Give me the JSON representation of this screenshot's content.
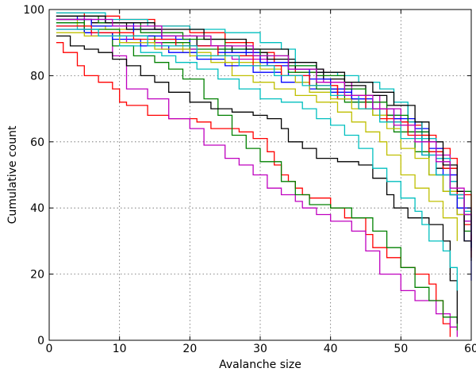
{
  "chart_data": {
    "type": "line",
    "title": "",
    "xlabel": "Avalanche size",
    "ylabel": "Cumulative count",
    "xlim": [
      0,
      60
    ],
    "ylim": [
      0,
      100
    ],
    "xticks": [
      0,
      10,
      20,
      30,
      40,
      50,
      60
    ],
    "yticks": [
      0,
      20,
      40,
      60,
      80,
      100
    ],
    "grid": true,
    "legend": "none",
    "step": true,
    "series": [
      {
        "color": "#ff0000",
        "x": [
          1,
          2,
          4,
          5,
          7,
          9,
          10,
          11,
          14,
          17,
          21,
          23,
          27,
          29,
          31,
          32,
          33,
          34,
          35,
          36,
          37,
          40,
          42,
          45,
          46,
          48,
          50,
          52,
          54,
          55,
          56,
          57
        ],
        "y": [
          90,
          87,
          83,
          80,
          78,
          76,
          72,
          71,
          68,
          67,
          66,
          64,
          63,
          61,
          57,
          53,
          50,
          48,
          46,
          44,
          43,
          40,
          37,
          32,
          28,
          25,
          22,
          20,
          17,
          12,
          5,
          1
        ]
      },
      {
        "color": "#bf00bf",
        "x": [
          1,
          5,
          9,
          11,
          14,
          17,
          20,
          22,
          25,
          27,
          29,
          31,
          33,
          35,
          36,
          38,
          40,
          43,
          45,
          47,
          50,
          52,
          55,
          57,
          58
        ],
        "y": [
          98,
          93,
          86,
          76,
          73,
          67,
          64,
          59,
          55,
          53,
          50,
          46,
          44,
          42,
          40,
          38,
          36,
          33,
          27,
          20,
          15,
          12,
          8,
          4,
          1
        ]
      },
      {
        "color": "#008000",
        "x": [
          1,
          5,
          9,
          12,
          15,
          17,
          19,
          22,
          24,
          26,
          28,
          30,
          33,
          35,
          37,
          40,
          43,
          46,
          48,
          50,
          52,
          54,
          56,
          58
        ],
        "y": [
          97,
          93,
          89,
          86,
          84,
          82,
          79,
          73,
          68,
          62,
          58,
          54,
          48,
          44,
          41,
          40,
          37,
          33,
          28,
          22,
          16,
          12,
          7,
          3
        ]
      },
      {
        "color": "#000000",
        "x": [
          1,
          3,
          5,
          7,
          9,
          11,
          13,
          15,
          17,
          20,
          23,
          26,
          29,
          31,
          33,
          34,
          36,
          38,
          41,
          44,
          46,
          48,
          49,
          51,
          54,
          56,
          57,
          58
        ],
        "y": [
          92,
          89,
          88,
          87,
          85,
          83,
          80,
          78,
          75,
          72,
          70,
          69,
          68,
          67,
          64,
          60,
          58,
          55,
          54,
          53,
          49,
          44,
          40,
          37,
          35,
          30,
          18,
          5
        ]
      },
      {
        "color": "#00bfbf",
        "x": [
          1,
          4,
          7,
          10,
          13,
          16,
          18,
          21,
          24,
          27,
          30,
          33,
          36,
          38,
          40,
          42,
          44,
          46,
          48,
          50,
          52,
          53,
          54,
          56,
          57,
          58
        ],
        "y": [
          96,
          94,
          92,
          89,
          87,
          86,
          84,
          82,
          79,
          76,
          73,
          72,
          70,
          67,
          65,
          62,
          58,
          52,
          48,
          43,
          39,
          35,
          30,
          27,
          22,
          15
        ]
      },
      {
        "color": "#bfbf00",
        "x": [
          1,
          4,
          8,
          12,
          15,
          19,
          23,
          26,
          29,
          32,
          35,
          38,
          41,
          43,
          45,
          47,
          48,
          50,
          52,
          54,
          56,
          58
        ],
        "y": [
          97,
          95,
          94,
          92,
          90,
          87,
          84,
          80,
          78,
          76,
          74,
          72,
          69,
          66,
          63,
          60,
          56,
          50,
          46,
          42,
          37,
          30
        ]
      },
      {
        "color": "#0000ff",
        "x": [
          1,
          4,
          8,
          12,
          16,
          20,
          24,
          28,
          31,
          34,
          37,
          40,
          43,
          46,
          48,
          50,
          52,
          54,
          55,
          57,
          58,
          59,
          60
        ],
        "y": [
          98,
          97,
          96,
          94,
          91,
          89,
          88,
          86,
          83,
          80,
          77,
          75,
          72,
          70,
          68,
          66,
          64,
          60,
          55,
          48,
          40,
          30,
          18
        ]
      },
      {
        "color": "#0000ff",
        "x": [
          1,
          5,
          9,
          13,
          17,
          21,
          25,
          29,
          33,
          37,
          41,
          45,
          48,
          51,
          53,
          55,
          57,
          59,
          60
        ],
        "y": [
          95,
          93,
          91,
          89,
          87,
          85,
          83,
          81,
          78,
          76,
          73,
          70,
          66,
          63,
          56,
          50,
          44,
          36,
          27
        ]
      },
      {
        "color": "#ff0000",
        "x": [
          1,
          5,
          10,
          15,
          20,
          25,
          29,
          32,
          35,
          38,
          41,
          44,
          47,
          50,
          53,
          55,
          57,
          58,
          59,
          60
        ],
        "y": [
          99,
          98,
          97,
          95,
          93,
          90,
          87,
          84,
          81,
          77,
          73,
          70,
          67,
          65,
          62,
          58,
          55,
          45,
          35,
          25
        ]
      },
      {
        "color": "#008000",
        "x": [
          1,
          5,
          10,
          15,
          20,
          25,
          30,
          34,
          38,
          42,
          46,
          49,
          52,
          54,
          56,
          58,
          59,
          60
        ],
        "y": [
          96,
          94,
          92,
          90,
          88,
          86,
          84,
          81,
          76,
          72,
          68,
          63,
          57,
          50,
          45,
          40,
          33,
          28
        ]
      },
      {
        "color": "#bf00bf",
        "x": [
          1,
          6,
          11,
          16,
          21,
          26,
          31,
          35,
          39,
          43,
          47,
          50,
          53,
          55,
          57,
          58,
          59,
          60
        ],
        "y": [
          94,
          92,
          90,
          88,
          86,
          85,
          84,
          82,
          78,
          74,
          70,
          66,
          61,
          56,
          50,
          43,
          36,
          30
        ]
      },
      {
        "color": "#000000",
        "x": [
          1,
          6,
          11,
          16,
          21,
          26,
          31,
          35,
          39,
          42,
          45,
          48,
          51,
          53,
          55,
          57,
          58,
          59,
          60
        ],
        "y": [
          97,
          96,
          94,
          92,
          89,
          87,
          85,
          82,
          79,
          77,
          74,
          71,
          66,
          60,
          52,
          44,
          38,
          30,
          24
        ]
      },
      {
        "color": "#00bfbf",
        "x": [
          1,
          8,
          14,
          20,
          25,
          30,
          33,
          35,
          38,
          41,
          44,
          47,
          49,
          51,
          53,
          55,
          57,
          58,
          59,
          60
        ],
        "y": [
          99,
          97,
          95,
          94,
          93,
          90,
          88,
          83,
          81,
          80,
          78,
          76,
          72,
          66,
          61,
          55,
          48,
          43,
          39,
          34
        ]
      },
      {
        "color": "#bfbf00",
        "x": [
          1,
          5,
          10,
          15,
          20,
          25,
          30,
          33,
          35,
          37,
          40,
          43,
          46,
          48,
          50,
          52,
          54,
          56,
          58,
          60
        ],
        "y": [
          93,
          92,
          90,
          88,
          86,
          84,
          82,
          80,
          78,
          75,
          73,
          70,
          68,
          64,
          58,
          55,
          50,
          45,
          38,
          30
        ]
      },
      {
        "color": "#0000ff",
        "x": [
          1,
          6,
          12,
          18,
          24,
          30,
          34,
          37,
          40,
          43,
          46,
          49,
          52,
          54,
          56,
          58,
          60
        ],
        "y": [
          97,
          95,
          92,
          89,
          87,
          84,
          82,
          79,
          76,
          73,
          70,
          67,
          63,
          58,
          50,
          40,
          28
        ]
      },
      {
        "color": "#008000",
        "x": [
          1,
          7,
          13,
          19,
          25,
          30,
          34,
          38,
          42,
          45,
          48,
          51,
          54,
          56,
          58,
          60
        ],
        "y": [
          98,
          96,
          93,
          91,
          88,
          86,
          83,
          80,
          76,
          72,
          68,
          63,
          57,
          52,
          45,
          36
        ]
      },
      {
        "color": "#ff0000",
        "x": [
          1,
          6,
          12,
          18,
          24,
          29,
          33,
          37,
          41,
          45,
          48,
          51,
          54,
          56,
          58,
          60
        ],
        "y": [
          95,
          93,
          91,
          89,
          86,
          83,
          80,
          77,
          74,
          70,
          66,
          62,
          57,
          52,
          44,
          35
        ]
      },
      {
        "color": "#000000",
        "x": [
          1,
          8,
          15,
          22,
          28,
          34,
          38,
          42,
          46,
          49,
          52,
          54,
          56,
          58,
          59,
          60
        ],
        "y": [
          98,
          96,
          94,
          91,
          88,
          84,
          81,
          78,
          75,
          71,
          66,
          60,
          53,
          45,
          38,
          30
        ]
      },
      {
        "color": "#00bfbf",
        "x": [
          1,
          7,
          14,
          21,
          27,
          32,
          36,
          40,
          44,
          47,
          50,
          53,
          55,
          57,
          59,
          60
        ],
        "y": [
          94,
          92,
          89,
          86,
          83,
          80,
          77,
          74,
          70,
          66,
          61,
          56,
          50,
          44,
          38,
          32
        ]
      },
      {
        "color": "#bf00bf",
        "x": [
          1,
          9,
          16,
          23,
          29,
          34,
          38,
          42,
          46,
          49,
          52,
          55,
          57,
          59,
          60
        ],
        "y": [
          97,
          95,
          92,
          89,
          86,
          82,
          78,
          74,
          70,
          65,
          60,
          54,
          46,
          38,
          30
        ]
      }
    ]
  }
}
